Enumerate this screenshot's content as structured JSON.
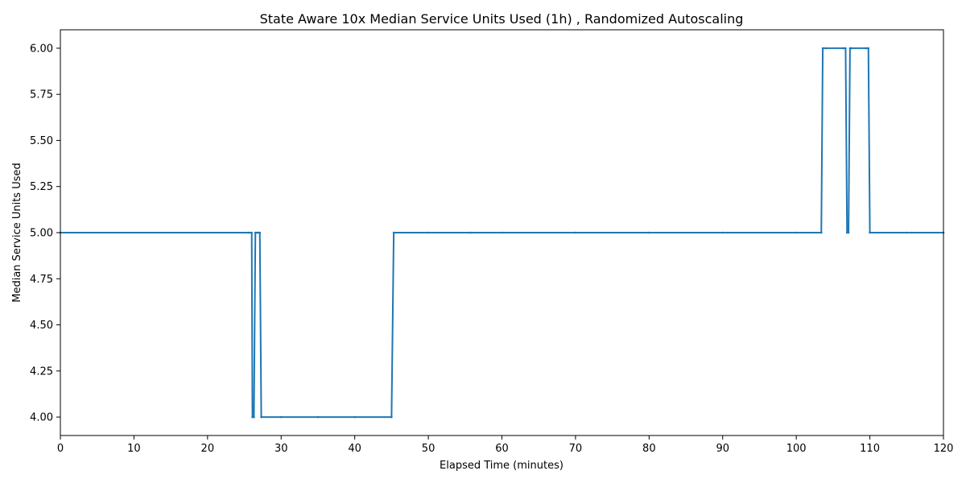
{
  "chart_data": {
    "type": "line",
    "title": "State Aware 10x Median Service Units Used (1h) , Randomized Autoscaling",
    "xlabel": "Elapsed Time (minutes)",
    "ylabel": "Median Service Units Used",
    "xlim": [
      0,
      120
    ],
    "ylim": [
      3.9,
      6.1
    ],
    "x_ticks": [
      "0",
      "10",
      "20",
      "30",
      "40",
      "50",
      "60",
      "70",
      "80",
      "90",
      "100",
      "110",
      "120"
    ],
    "y_ticks": [
      "4.00",
      "4.25",
      "4.50",
      "4.75",
      "5.00",
      "5.25",
      "5.50",
      "5.75",
      "6.00"
    ],
    "grid": false,
    "legend": "none",
    "series": [
      {
        "color": "#1f77b4",
        "x": [
          0,
          25.6,
          26.0,
          26.1,
          26.3,
          26.5,
          26.7,
          26.9,
          27.1,
          27.3,
          30,
          35,
          40,
          45.0,
          45.3,
          50,
          55.6,
          55.9,
          60,
          70,
          80,
          90,
          100,
          103.4,
          103.6,
          104,
          106.4,
          106.7,
          106.9,
          107.1,
          107.3,
          107.5,
          109.5,
          109.8,
          110,
          115,
          120
        ],
        "y": [
          5.0,
          5.0,
          5.0,
          4.0,
          4.0,
          5.0,
          5.0,
          5.0,
          5.0,
          4.0,
          4.0,
          4.0,
          4.0,
          4.0,
          5.0,
          5.0,
          5.0,
          5.0,
          5.0,
          5.0,
          5.0,
          5.0,
          5.0,
          5.0,
          6.0,
          6.0,
          6.0,
          6.0,
          5.0,
          5.0,
          6.0,
          6.0,
          6.0,
          6.0,
          5.0,
          5.0,
          5.0
        ]
      }
    ]
  }
}
